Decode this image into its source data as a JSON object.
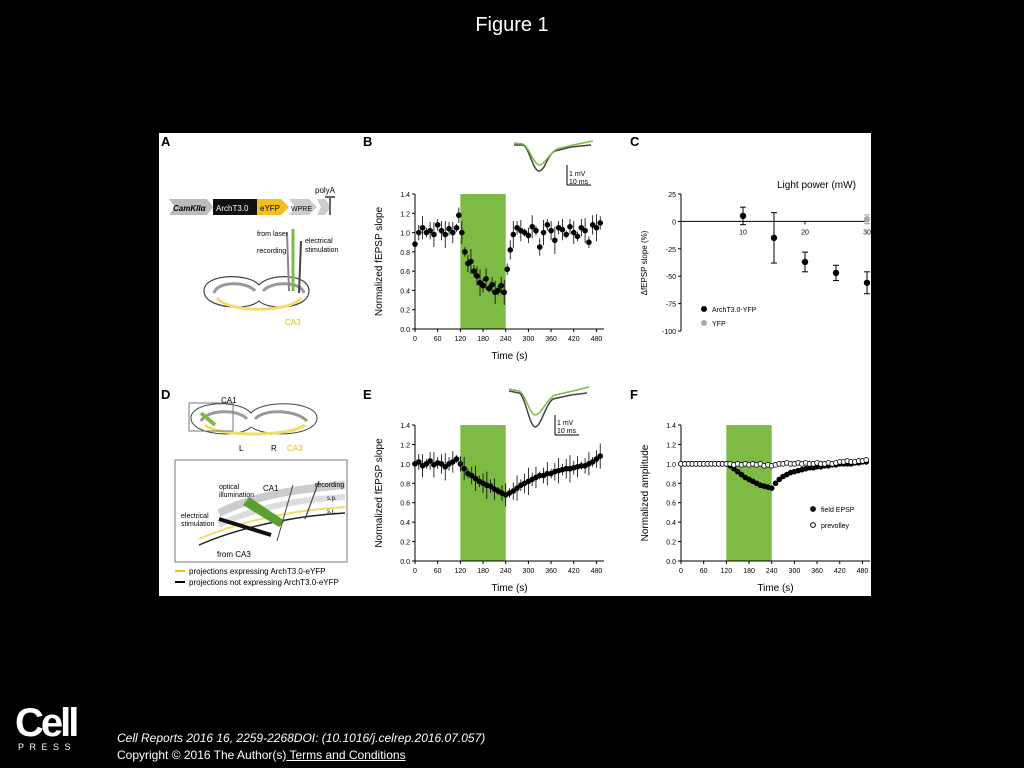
{
  "slide": {
    "title": "Figure 1"
  },
  "publisher": {
    "logo_text": "Cell",
    "logo_subtext": "PRESS",
    "citation": "Cell Reports 2016 16, 2259-2268DOI: (10.1016/j.celrep.2016.07.057)",
    "copyright": "Copyright © 2016 The Author(s)",
    "terms_link": " Terms and Conditions"
  },
  "panels": {
    "a": {
      "letter": "A",
      "construct": [
        "CamKIIα",
        "ArchT3.0",
        "eYFP",
        "WPRE",
        "polyA"
      ],
      "labels": [
        "from laser",
        "recording",
        "electrical",
        "stimulation",
        "CA3"
      ]
    },
    "d": {
      "letter": "D",
      "labels": [
        "CA1",
        "L",
        "R",
        "CA3",
        "CA1",
        "optical",
        "illumination",
        "electrical",
        "stimulation",
        "from CA3",
        "recording",
        "s.p.",
        "s.r."
      ],
      "legend": [
        "projections expressing ArchT3.0-eYFP",
        "projections not expressing ArchT3.0-eYFP"
      ]
    },
    "inset_b": {
      "scale_v": "1 mV",
      "scale_t": "10 ms"
    },
    "inset_e": {
      "scale_v": "1 mV",
      "scale_t": "10 ms"
    }
  },
  "chart_data": [
    {
      "panel": "B",
      "type": "scatter",
      "xlabel": "Time (s)",
      "ylabel": "Normalized fEPSP slope",
      "xlim": [
        0,
        500
      ],
      "ylim": [
        0,
        1.4
      ],
      "xticks": [
        0,
        60,
        120,
        180,
        240,
        300,
        360,
        420,
        480
      ],
      "yticks": [
        0.0,
        0.2,
        0.4,
        0.6,
        0.8,
        1.0,
        1.2,
        1.4
      ],
      "shaded_interval": [
        120,
        240
      ],
      "shade_color": "#7dbb44",
      "baseline": 1.0,
      "points": [
        [
          0,
          0.88
        ],
        [
          10,
          1.0
        ],
        [
          20,
          1.05
        ],
        [
          30,
          1.0
        ],
        [
          40,
          1.02
        ],
        [
          50,
          0.98
        ],
        [
          60,
          1.08
        ],
        [
          70,
          1.02
        ],
        [
          80,
          0.98
        ],
        [
          90,
          1.04
        ],
        [
          100,
          1.0
        ],
        [
          110,
          1.05
        ],
        [
          116,
          1.18
        ],
        [
          124,
          1.0
        ],
        [
          132,
          0.8
        ],
        [
          140,
          0.68
        ],
        [
          148,
          0.7
        ],
        [
          156,
          0.6
        ],
        [
          164,
          0.55
        ],
        [
          172,
          0.48
        ],
        [
          180,
          0.45
        ],
        [
          188,
          0.52
        ],
        [
          196,
          0.42
        ],
        [
          204,
          0.46
        ],
        [
          212,
          0.38
        ],
        [
          220,
          0.4
        ],
        [
          228,
          0.45
        ],
        [
          236,
          0.38
        ],
        [
          244,
          0.62
        ],
        [
          252,
          0.82
        ],
        [
          260,
          0.98
        ],
        [
          270,
          1.05
        ],
        [
          280,
          1.02
        ],
        [
          290,
          1.0
        ],
        [
          300,
          0.97
        ],
        [
          310,
          1.06
        ],
        [
          320,
          1.02
        ],
        [
          330,
          0.85
        ],
        [
          340,
          1.0
        ],
        [
          350,
          1.08
        ],
        [
          360,
          1.02
        ],
        [
          370,
          0.92
        ],
        [
          380,
          1.05
        ],
        [
          390,
          1.03
        ],
        [
          400,
          0.98
        ],
        [
          410,
          1.06
        ],
        [
          420,
          1.0
        ],
        [
          430,
          0.96
        ],
        [
          440,
          1.05
        ],
        [
          450,
          1.02
        ],
        [
          460,
          0.9
        ],
        [
          470,
          1.08
        ],
        [
          480,
          1.05
        ],
        [
          490,
          1.1
        ]
      ]
    },
    {
      "panel": "C",
      "type": "scatter",
      "title": "Light power (mW)",
      "xlabel": "",
      "ylabel": "ΔfEPSP slope (%)",
      "xlim": [
        0,
        30
      ],
      "ylim": [
        -100,
        25
      ],
      "xticks": [
        10,
        20,
        30
      ],
      "yticks": [
        25,
        0,
        -25,
        -50,
        -75,
        -100
      ],
      "series": [
        {
          "name": "ArchT3.0-YFP",
          "color": "#000000",
          "points": [
            [
              10,
              5,
              8
            ],
            [
              15,
              -15,
              23
            ],
            [
              20,
              -37,
              9
            ],
            [
              25,
              -47,
              7
            ],
            [
              30,
              -56,
              10
            ]
          ]
        },
        {
          "name": "YFP",
          "color": "#aaaaaa",
          "points": [
            [
              30,
              2,
              4
            ]
          ]
        }
      ]
    },
    {
      "panel": "E",
      "type": "scatter",
      "xlabel": "Time (s)",
      "ylabel": "Normalized fEPSP slope",
      "xlim": [
        0,
        500
      ],
      "ylim": [
        0,
        1.4
      ],
      "xticks": [
        0,
        60,
        120,
        180,
        240,
        300,
        360,
        420,
        480
      ],
      "yticks": [
        0.0,
        0.2,
        0.4,
        0.6,
        0.8,
        1.0,
        1.2,
        1.4
      ],
      "shaded_interval": [
        120,
        240
      ],
      "shade_color": "#7dbb44",
      "baseline": 1.0,
      "points": [
        [
          0,
          1.0
        ],
        [
          10,
          1.02
        ],
        [
          20,
          0.98
        ],
        [
          30,
          1.0
        ],
        [
          40,
          1.03
        ],
        [
          50,
          0.99
        ],
        [
          60,
          1.01
        ],
        [
          70,
          1.0
        ],
        [
          80,
          0.97
        ],
        [
          90,
          1.0
        ],
        [
          100,
          1.02
        ],
        [
          110,
          1.05
        ],
        [
          120,
          1.0
        ],
        [
          130,
          0.95
        ],
        [
          140,
          0.9
        ],
        [
          150,
          0.88
        ],
        [
          160,
          0.85
        ],
        [
          170,
          0.82
        ],
        [
          180,
          0.8
        ],
        [
          190,
          0.78
        ],
        [
          200,
          0.77
        ],
        [
          210,
          0.74
        ],
        [
          220,
          0.72
        ],
        [
          230,
          0.7
        ],
        [
          240,
          0.68
        ],
        [
          250,
          0.7
        ],
        [
          260,
          0.72
        ],
        [
          270,
          0.75
        ],
        [
          280,
          0.78
        ],
        [
          290,
          0.8
        ],
        [
          300,
          0.82
        ],
        [
          310,
          0.84
        ],
        [
          320,
          0.86
        ],
        [
          330,
          0.88
        ],
        [
          340,
          0.88
        ],
        [
          350,
          0.9
        ],
        [
          360,
          0.9
        ],
        [
          370,
          0.92
        ],
        [
          380,
          0.93
        ],
        [
          390,
          0.94
        ],
        [
          400,
          0.95
        ],
        [
          410,
          0.95
        ],
        [
          420,
          0.96
        ],
        [
          430,
          0.97
        ],
        [
          440,
          0.98
        ],
        [
          450,
          0.98
        ],
        [
          460,
          1.0
        ],
        [
          470,
          1.02
        ],
        [
          480,
          1.05
        ],
        [
          490,
          1.08
        ]
      ]
    },
    {
      "panel": "F",
      "type": "scatter",
      "xlabel": "Time (s)",
      "ylabel": "Normalized amplitude",
      "xlim": [
        0,
        500
      ],
      "ylim": [
        0,
        1.4
      ],
      "xticks": [
        0,
        60,
        120,
        180,
        240,
        300,
        360,
        420,
        480
      ],
      "yticks": [
        0.0,
        0.2,
        0.4,
        0.6,
        0.8,
        1.0,
        1.2,
        1.4
      ],
      "shaded_interval": [
        120,
        240
      ],
      "shade_color": "#7dbb44",
      "series": [
        {
          "name": "field EPSP",
          "filled": true,
          "points": [
            [
              0,
              1.0
            ],
            [
              10,
              1.0
            ],
            [
              20,
              1.0
            ],
            [
              30,
              1.0
            ],
            [
              40,
              1.0
            ],
            [
              50,
              1.0
            ],
            [
              60,
              1.0
            ],
            [
              70,
              1.0
            ],
            [
              80,
              1.0
            ],
            [
              90,
              1.0
            ],
            [
              100,
              1.0
            ],
            [
              110,
              1.0
            ],
            [
              120,
              1.0
            ],
            [
              130,
              0.98
            ],
            [
              140,
              0.95
            ],
            [
              150,
              0.92
            ],
            [
              160,
              0.89
            ],
            [
              170,
              0.86
            ],
            [
              180,
              0.84
            ],
            [
              190,
              0.82
            ],
            [
              200,
              0.8
            ],
            [
              210,
              0.78
            ],
            [
              220,
              0.77
            ],
            [
              230,
              0.76
            ],
            [
              240,
              0.75
            ],
            [
              250,
              0.8
            ],
            [
              260,
              0.84
            ],
            [
              270,
              0.87
            ],
            [
              280,
              0.89
            ],
            [
              290,
              0.91
            ],
            [
              300,
              0.92
            ],
            [
              310,
              0.93
            ],
            [
              320,
              0.94
            ],
            [
              330,
              0.95
            ],
            [
              340,
              0.96
            ],
            [
              350,
              0.96
            ],
            [
              360,
              0.97
            ],
            [
              370,
              0.97
            ],
            [
              380,
              0.98
            ],
            [
              390,
              0.98
            ],
            [
              400,
              0.99
            ],
            [
              410,
              0.99
            ],
            [
              420,
              1.0
            ],
            [
              430,
              1.0
            ],
            [
              440,
              1.0
            ],
            [
              450,
              1.0
            ],
            [
              460,
              1.01
            ],
            [
              470,
              1.01
            ],
            [
              480,
              1.02
            ],
            [
              490,
              1.02
            ]
          ]
        },
        {
          "name": "prevolley",
          "filled": false,
          "points": [
            [
              0,
              1.0
            ],
            [
              10,
              1.0
            ],
            [
              20,
              1.0
            ],
            [
              30,
              1.0
            ],
            [
              40,
              1.0
            ],
            [
              50,
              1.0
            ],
            [
              60,
              1.0
            ],
            [
              70,
              1.0
            ],
            [
              80,
              1.0
            ],
            [
              90,
              1.0
            ],
            [
              100,
              1.0
            ],
            [
              110,
              1.0
            ],
            [
              120,
              1.0
            ],
            [
              130,
              1.0
            ],
            [
              140,
              0.99
            ],
            [
              150,
              1.0
            ],
            [
              160,
              0.99
            ],
            [
              170,
              1.0
            ],
            [
              180,
              0.99
            ],
            [
              190,
              1.0
            ],
            [
              200,
              0.99
            ],
            [
              210,
              1.0
            ],
            [
              220,
              0.98
            ],
            [
              230,
              0.99
            ],
            [
              240,
              0.98
            ],
            [
              250,
              0.99
            ],
            [
              260,
              1.0
            ],
            [
              270,
              1.0
            ],
            [
              280,
              1.01
            ],
            [
              290,
              1.0
            ],
            [
              300,
              1.0
            ],
            [
              310,
              1.01
            ],
            [
              320,
              1.0
            ],
            [
              330,
              1.01
            ],
            [
              340,
              1.0
            ],
            [
              350,
              1.0
            ],
            [
              360,
              1.01
            ],
            [
              370,
              1.0
            ],
            [
              380,
              1.0
            ],
            [
              390,
              1.01
            ],
            [
              400,
              1.0
            ],
            [
              410,
              1.01
            ],
            [
              420,
              1.02
            ],
            [
              430,
              1.02
            ],
            [
              440,
              1.03
            ],
            [
              450,
              1.02
            ],
            [
              460,
              1.02
            ],
            [
              470,
              1.03
            ],
            [
              480,
              1.03
            ],
            [
              490,
              1.04
            ]
          ]
        }
      ]
    }
  ]
}
